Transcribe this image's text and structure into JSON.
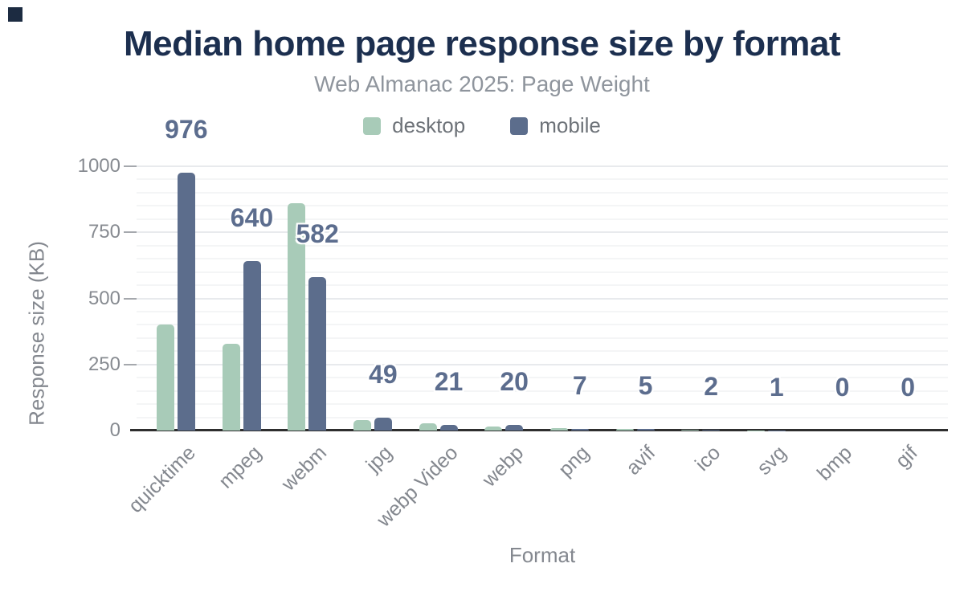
{
  "header": {
    "title": "Median home page response size by format",
    "subtitle": "Web Almanac 2025: Page Weight"
  },
  "legend": [
    {
      "label": "desktop",
      "color": "#a8cbb8"
    },
    {
      "label": "mobile",
      "color": "#5c6d8c"
    }
  ],
  "chart_data": {
    "type": "bar",
    "title": "Median home page response size by format",
    "subtitle": "Web Almanac 2025: Page Weight",
    "xlabel": "Format",
    "ylabel": "Response size (KB)",
    "categories": [
      "quicktime",
      "mpeg",
      "webm",
      "jpg",
      "webp Video",
      "webp",
      "png",
      "avif",
      "ico",
      "svg",
      "bmp",
      "gif"
    ],
    "series": [
      {
        "name": "desktop",
        "color": "#a8cbb8",
        "values": [
          400,
          328,
          860,
          40,
          27,
          16,
          8,
          7,
          2,
          1,
          0,
          0
        ]
      },
      {
        "name": "mobile",
        "color": "#5c6d8c",
        "values": [
          976,
          640,
          582,
          49,
          21,
          20,
          7,
          5,
          2,
          1,
          0,
          0
        ]
      }
    ],
    "data_labels": [
      "976",
      "640",
      "582",
      "49",
      "21",
      "20",
      "7",
      "5",
      "2",
      "1",
      "0",
      "0"
    ],
    "data_label_series": "mobile",
    "ylim": [
      0,
      1000
    ],
    "yticks": [
      0,
      250,
      500,
      750,
      1000
    ],
    "grid": "horizontal, minor every 50, major every 250",
    "legend_position": "top-center"
  },
  "colors": {
    "title": "#1c2f4f",
    "subtitle": "#8f959d",
    "axis_text": "#84888f",
    "data_label": "#5c6d8e",
    "baseline": "#2e2e2e",
    "corner_mark": "#1c2b41"
  }
}
